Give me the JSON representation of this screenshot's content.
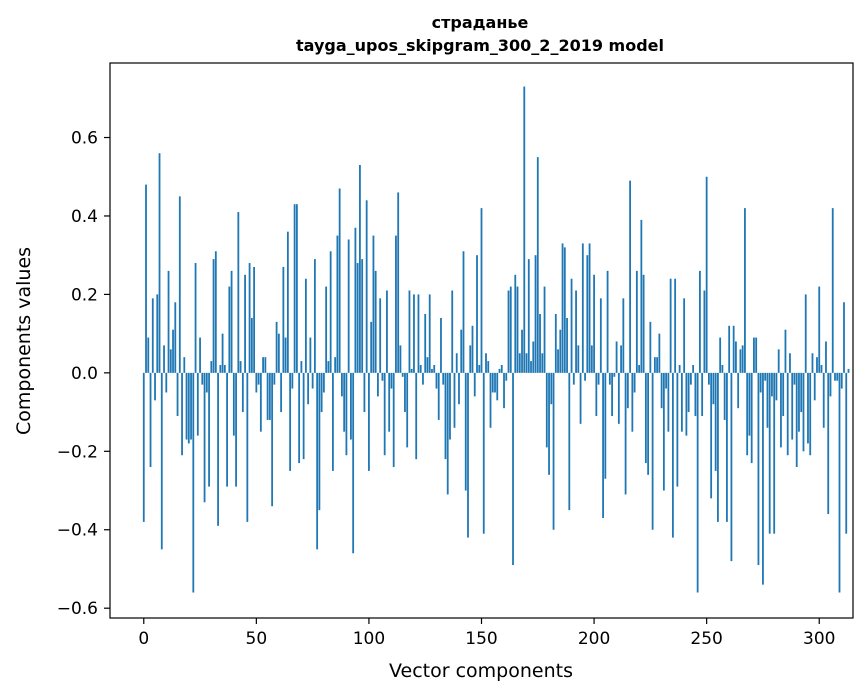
{
  "chart_data": {
    "type": "bar",
    "title": "страданье",
    "subtitle": "tayga_upos_skipgram_300_2_2019 model",
    "xlabel": "Vector components",
    "ylabel": "Components values",
    "xlim": [
      -15,
      315
    ],
    "ylim": [
      -0.625,
      0.79
    ],
    "xticks": [
      0,
      50,
      100,
      150,
      200,
      250,
      300
    ],
    "xtick_labels": [
      "0",
      "50",
      "100",
      "150",
      "200",
      "250",
      "300"
    ],
    "yticks": [
      -0.6,
      -0.4,
      -0.2,
      0.0,
      0.2,
      0.4,
      0.6
    ],
    "ytick_labels": [
      "−0.6",
      "−0.4",
      "−0.2",
      "0.0",
      "0.2",
      "0.4",
      "0.6"
    ],
    "bar_color": "#1f77b4",
    "values": [
      -0.38,
      0.48,
      0.09,
      -0.24,
      0.19,
      -0.07,
      0.2,
      0.56,
      -0.45,
      0.07,
      -0.05,
      0.26,
      0.06,
      0.11,
      0.18,
      -0.11,
      0.45,
      -0.21,
      0.04,
      -0.17,
      -0.18,
      -0.17,
      -0.56,
      0.28,
      -0.16,
      0.09,
      -0.03,
      -0.33,
      -0.05,
      -0.29,
      0.03,
      0.29,
      0.31,
      -0.39,
      0.02,
      0.1,
      0.02,
      -0.29,
      0.22,
      0.26,
      -0.16,
      -0.29,
      0.41,
      0.03,
      -0.1,
      0.25,
      -0.38,
      0.28,
      0.14,
      0.27,
      -0.05,
      -0.03,
      -0.15,
      0.04,
      0.04,
      -0.12,
      -0.12,
      -0.34,
      -0.03,
      0.13,
      0.1,
      -0.1,
      0.27,
      0.09,
      0.36,
      -0.25,
      -0.04,
      0.43,
      0.43,
      -0.23,
      0.03,
      -0.22,
      0.24,
      -0.08,
      0.09,
      -0.04,
      0.29,
      -0.45,
      -0.35,
      -0.1,
      -0.05,
      0.22,
      0.03,
      0.31,
      -0.25,
      0.04,
      0.35,
      0.47,
      -0.06,
      -0.15,
      -0.21,
      0.34,
      -0.17,
      -0.46,
      0.37,
      0.28,
      0.53,
      0.29,
      -0.1,
      0.44,
      -0.25,
      0.13,
      0.35,
      0.26,
      -0.06,
      0.19,
      -0.02,
      -0.21,
      0.21,
      -0.15,
      -0.04,
      -0.24,
      0.35,
      0.46,
      0.07,
      -0.01,
      -0.1,
      -0.19,
      0.21,
      0.01,
      0.2,
      -0.22,
      0.2,
      0.02,
      -0.03,
      0.15,
      0.04,
      0.2,
      0.01,
      0.02,
      -0.04,
      -0.12,
      0.14,
      -0.03,
      -0.22,
      -0.31,
      -0.17,
      0.21,
      -0.14,
      0.05,
      -0.08,
      0.11,
      0.31,
      -0.3,
      -0.42,
      0.07,
      0.12,
      -0.06,
      0.3,
      0.02,
      0.42,
      -0.41,
      0.05,
      0.03,
      -0.14,
      -0.05,
      -0.05,
      -0.07,
      0.01,
      0.02,
      -0.09,
      -0.02,
      0.21,
      0.22,
      -0.49,
      0.25,
      0.22,
      0.05,
      0.11,
      0.73,
      0.05,
      0.29,
      0.03,
      0.08,
      0.3,
      0.55,
      0.15,
      0.05,
      0.22,
      -0.19,
      -0.26,
      -0.08,
      -0.4,
      0.15,
      0.06,
      0.11,
      0.33,
      0.32,
      0.14,
      -0.35,
      0.24,
      -0.03,
      0.21,
      0.07,
      -0.13,
      0.33,
      -0.02,
      0.3,
      0.33,
      0.07,
      0.25,
      -0.11,
      -0.03,
      0.19,
      -0.37,
      -0.27,
      0.26,
      -0.03,
      -0.11,
      -0.01,
      0.08,
      -0.13,
      0.07,
      0.19,
      -0.31,
      -0.09,
      0.49,
      -0.15,
      -0.05,
      0.26,
      0.02,
      0.39,
      0.25,
      -0.23,
      -0.26,
      0.13,
      -0.4,
      0.04,
      0.04,
      0.1,
      -0.09,
      -0.3,
      -0.04,
      -0.15,
      0.24,
      -0.42,
      0.24,
      -0.29,
      0.02,
      -0.15,
      0.19,
      -0.16,
      -0.1,
      -0.03,
      0.02,
      -0.11,
      -0.56,
      0.26,
      -0.11,
      0.21,
      0.5,
      -0.03,
      -0.32,
      -0.08,
      -0.25,
      -0.38,
      0.09,
      0.02,
      -0.12,
      -0.38,
      0.12,
      -0.48,
      0.12,
      0.08,
      -0.09,
      0.06,
      0.07,
      0.42,
      -0.21,
      -0.16,
      -0.23,
      0.09,
      0.09,
      -0.49,
      -0.05,
      -0.54,
      -0.02,
      -0.14,
      -0.41,
      -0.06,
      -0.41,
      -0.07,
      0.06,
      -0.19,
      -0.11,
      0.11,
      -0.21,
      0.05,
      -0.17,
      -0.03,
      -0.24,
      -0.15,
      -0.1,
      -0.2,
      0.2,
      -0.18,
      -0.21,
      0.05,
      -0.07,
      0.04,
      0.22,
      0.02,
      -0.14,
      0.08,
      -0.36,
      -0.06,
      0.42,
      -0.02,
      -0.02,
      -0.56,
      -0.04,
      0.18,
      -0.41,
      0.01
    ]
  }
}
